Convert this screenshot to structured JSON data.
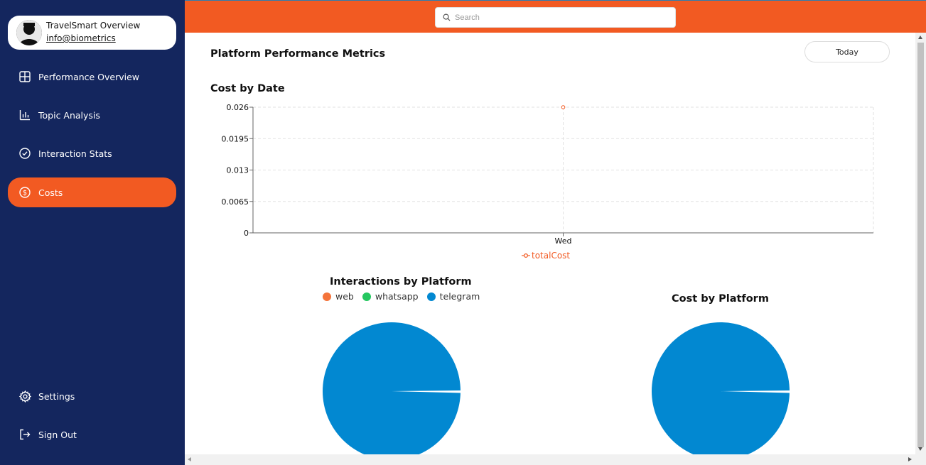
{
  "profile": {
    "name": "TravelSmart Overview",
    "email": "info@biometrics"
  },
  "nav": {
    "items": [
      {
        "label": "Performance Overview",
        "icon": "grid-icon"
      },
      {
        "label": "Topic Analysis",
        "icon": "bar-chart-icon"
      },
      {
        "label": "Interaction Stats",
        "icon": "check-circle-icon"
      },
      {
        "label": "Costs",
        "icon": "dollar-circle-icon",
        "active": true
      }
    ],
    "bottom": [
      {
        "label": "Settings",
        "icon": "gear-icon"
      },
      {
        "label": "Sign Out",
        "icon": "sign-out-icon"
      }
    ]
  },
  "search": {
    "placeholder": "Search",
    "value": ""
  },
  "page": {
    "title": "Platform Performance Metrics",
    "today_label": "Today"
  },
  "colors": {
    "accent": "#f25a22",
    "sidebar": "#14265e",
    "pie_blue": "#0288d1",
    "web": "#f4743b",
    "whatsapp": "#25c760",
    "telegram": "#0288d1"
  },
  "chart_data": [
    {
      "type": "line",
      "title": "Cost by Date",
      "categories": [
        "Wed"
      ],
      "series": [
        {
          "name": "totalCost",
          "values": [
            0.026
          ]
        }
      ],
      "yticks": [
        "0",
        "0.0065",
        "0.013",
        "0.0195",
        "0.026"
      ],
      "ylim": [
        0,
        0.026
      ],
      "grid": true,
      "legend": "bottom"
    },
    {
      "type": "pie",
      "title": "Interactions by Platform",
      "legend_items": [
        "web",
        "whatsapp",
        "telegram"
      ],
      "slices": [
        {
          "name": "web",
          "value": 0
        },
        {
          "name": "whatsapp",
          "value": 0
        },
        {
          "name": "telegram",
          "value": 1
        }
      ]
    },
    {
      "type": "pie",
      "title": "Cost by Platform",
      "slices": [
        {
          "name": "telegram",
          "value": 1
        }
      ]
    }
  ]
}
